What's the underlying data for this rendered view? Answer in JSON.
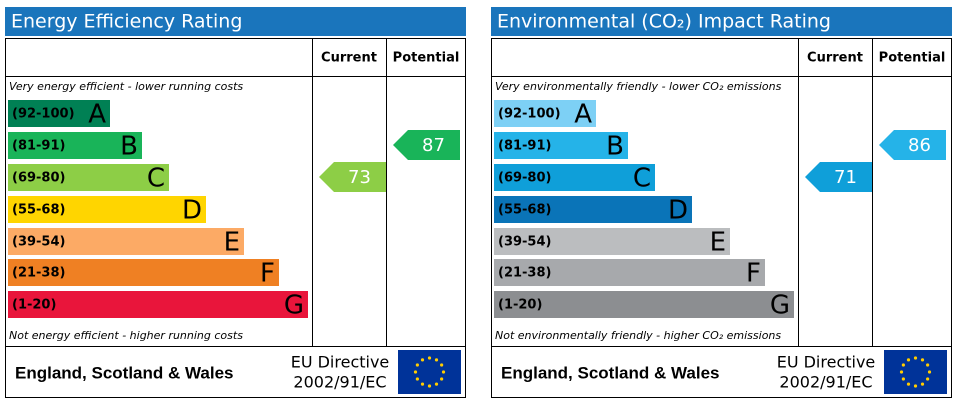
{
  "panels": [
    {
      "title": "Energy Efficiency Rating",
      "current_label": "Current",
      "potential_label": "Potential",
      "top_note": "Very energy efficient - lower running costs",
      "bottom_note": "Not energy efficient - higher running costs",
      "bands": [
        {
          "range": "(92-100)",
          "letter": "A",
          "color": "#008054"
        },
        {
          "range": "(81-91)",
          "letter": "B",
          "color": "#19b459"
        },
        {
          "range": "(69-80)",
          "letter": "C",
          "color": "#8dce46"
        },
        {
          "range": "(55-68)",
          "letter": "D",
          "color": "#ffd500"
        },
        {
          "range": "(39-54)",
          "letter": "E",
          "color": "#fcaa65"
        },
        {
          "range": "(21-38)",
          "letter": "F",
          "color": "#ef8023"
        },
        {
          "range": "(1-20)",
          "letter": "G",
          "color": "#e9153b"
        }
      ],
      "current": 73,
      "potential": 87,
      "footer": "England, Scotland & Wales",
      "directive": "EU Directive",
      "directive_code": "2002/91/EC"
    },
    {
      "title": "Environmental (CO₂) Impact Rating",
      "current_label": "Current",
      "potential_label": "Potential",
      "top_note": "Very environmentally friendly - lower CO₂ emissions",
      "bottom_note": "Not environmentally friendly - higher CO₂ emissions",
      "bands": [
        {
          "range": "(92-100)",
          "letter": "A",
          "color": "#7dd0f5"
        },
        {
          "range": "(81-91)",
          "letter": "B",
          "color": "#25b3e8"
        },
        {
          "range": "(69-80)",
          "letter": "C",
          "color": "#0f9fd9"
        },
        {
          "range": "(55-68)",
          "letter": "D",
          "color": "#0a74b8"
        },
        {
          "range": "(39-54)",
          "letter": "E",
          "color": "#bbbdbf"
        },
        {
          "range": "(21-38)",
          "letter": "F",
          "color": "#a7a9ac"
        },
        {
          "range": "(1-20)",
          "letter": "G",
          "color": "#8c8e91"
        }
      ],
      "current": 71,
      "potential": 86,
      "footer": "England, Scotland & Wales",
      "directive": "EU Directive",
      "directive_code": "2002/91/EC"
    }
  ]
}
